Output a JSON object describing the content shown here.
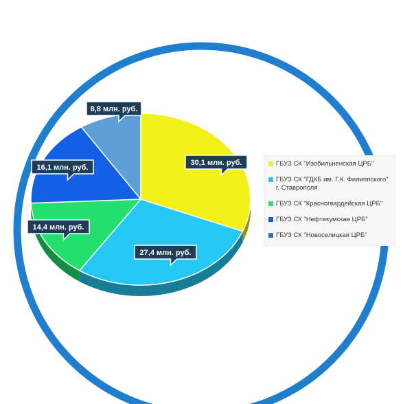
{
  "chart_data": {
    "type": "pie",
    "title": "",
    "categories": [
      "ГБУЗ СК \"Изобильненская ЦРБ\"",
      "ГБУЗ СК \"ГДКБ им. Г.К. Филиппского\" г. Ставрополя",
      "ГБУЗ СК \"Красногвардейская ЦРБ\"",
      "ГБУЗ СК \"Нефтекумская ЦРБ\"",
      "ГБУЗ СК \"Новоселицкая ЦРБ\""
    ],
    "values": [
      30.1,
      27.4,
      14.4,
      16.1,
      8.8
    ],
    "unit": "млн. руб.",
    "data_labels": [
      "30,1 млн. руб.",
      "27,4 млн. руб.",
      "14,4 млн. руб.",
      "16,1 млн. руб.",
      "8,8 млн. руб."
    ],
    "colors": [
      "#f2f21a",
      "#25c8f2",
      "#22e06e",
      "#1160e6",
      "#5f9fd8"
    ],
    "style": "3d-exploded-perspective",
    "legend_position": "right"
  },
  "legend": {
    "items": [
      {
        "label": "ГБУЗ СК \"Изобильненская ЦРБ\"",
        "color": "#f2f21a"
      },
      {
        "label": "ГБУЗ СК \"ГДКБ им. Г.К. Филиппского\" г. Ставрополя",
        "color": "#25c8f2"
      },
      {
        "label": "ГБУЗ СК \"Красногвардейская ЦРБ\"",
        "color": "#22e06e"
      },
      {
        "label": "ГБУЗ СК \"Нефтекумская ЦРБ\"",
        "color": "#1160e6"
      },
      {
        "label": "ГБУЗ СК \"Новоселицкая ЦРБ\"",
        "color": "#3a6fae"
      }
    ]
  },
  "frame": {
    "ring_color": "#1f7fce"
  },
  "callout_color": "#1e3d57"
}
